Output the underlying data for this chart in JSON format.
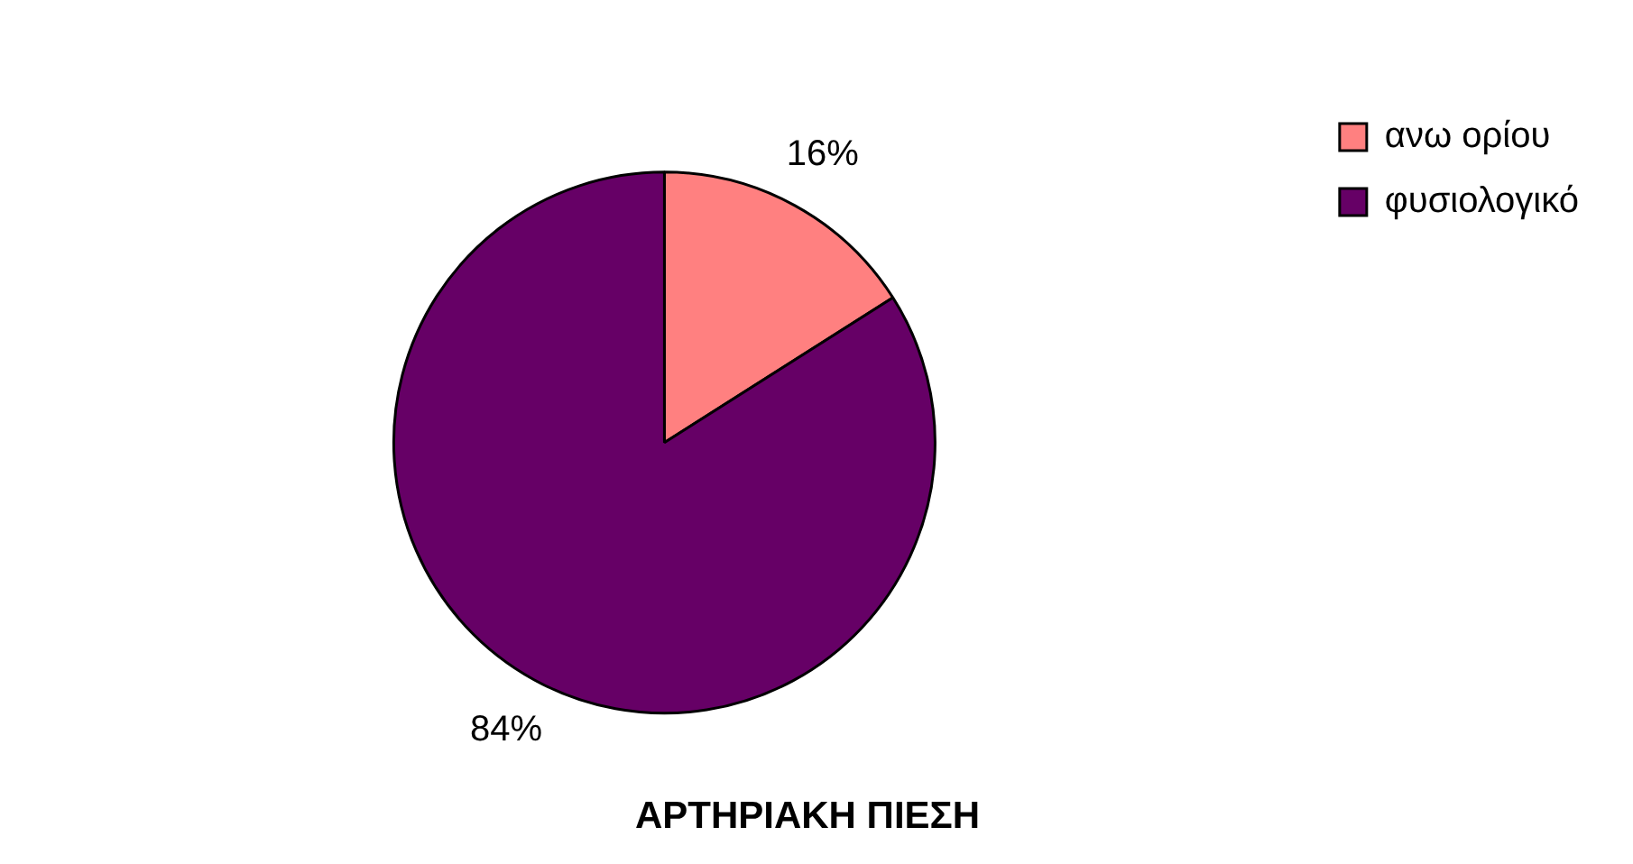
{
  "chart_data": {
    "type": "pie",
    "title": "ΑΡΤΗΡΙΑΚΗ ΠΙΕΣΗ",
    "categories": [
      "ανω ορίου",
      "φυσιολογικό"
    ],
    "values": [
      16,
      84
    ],
    "colors": [
      "#ff8080",
      "#660066"
    ],
    "value_labels": [
      "16%",
      "84%"
    ],
    "legend": "top right"
  }
}
